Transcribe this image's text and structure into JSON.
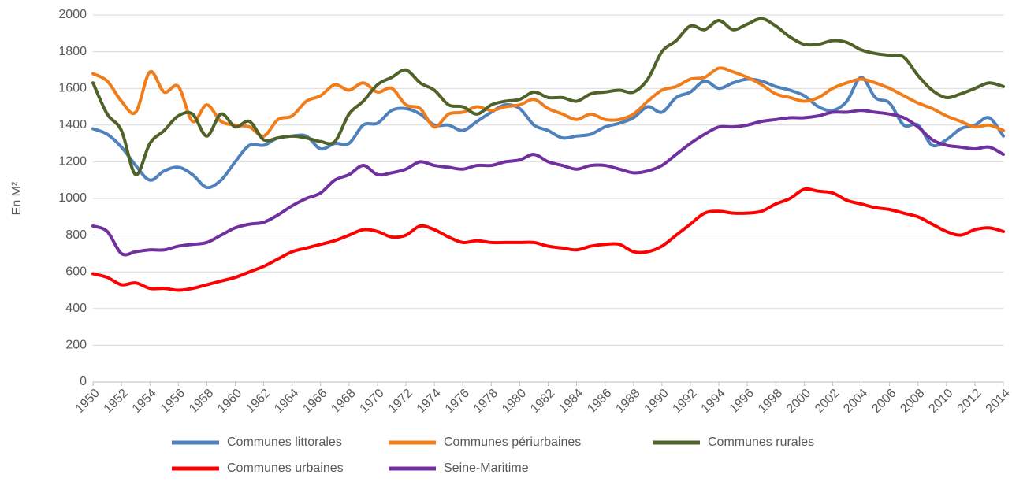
{
  "chart_data": {
    "type": "line",
    "y_label": "En M²",
    "x": [
      1950,
      1951,
      1952,
      1953,
      1954,
      1955,
      1956,
      1957,
      1958,
      1959,
      1960,
      1961,
      1962,
      1963,
      1964,
      1965,
      1966,
      1967,
      1968,
      1969,
      1970,
      1971,
      1972,
      1973,
      1974,
      1975,
      1976,
      1977,
      1978,
      1979,
      1980,
      1981,
      1982,
      1983,
      1984,
      1985,
      1986,
      1987,
      1988,
      1989,
      1990,
      1991,
      1992,
      1993,
      1994,
      1995,
      1996,
      1997,
      1998,
      1999,
      2000,
      2001,
      2002,
      2003,
      2004,
      2005,
      2006,
      2007,
      2008,
      2009,
      2010,
      2011,
      2012,
      2013,
      2014
    ],
    "xlim": [
      1950,
      2014
    ],
    "xticks": [
      1950,
      1952,
      1954,
      1956,
      1958,
      1960,
      1962,
      1964,
      1966,
      1968,
      1970,
      1972,
      1974,
      1976,
      1978,
      1980,
      1982,
      1984,
      1986,
      1988,
      1990,
      1992,
      1994,
      1996,
      1998,
      2000,
      2002,
      2004,
      2006,
      2008,
      2010,
      2012,
      2014
    ],
    "ylim": [
      0,
      2000
    ],
    "yticks": [
      0,
      200,
      400,
      600,
      800,
      1000,
      1200,
      1400,
      1600,
      1800,
      2000
    ],
    "grid": true,
    "legend": "bottom",
    "series": [
      {
        "name": "Communes littorales",
        "color": "#4f81bd",
        "values": [
          1380,
          1350,
          1280,
          1180,
          1100,
          1150,
          1170,
          1130,
          1060,
          1100,
          1200,
          1290,
          1290,
          1330,
          1340,
          1340,
          1270,
          1300,
          1300,
          1400,
          1410,
          1480,
          1490,
          1460,
          1400,
          1400,
          1370,
          1420,
          1470,
          1510,
          1490,
          1400,
          1370,
          1330,
          1340,
          1350,
          1390,
          1410,
          1440,
          1500,
          1470,
          1550,
          1580,
          1640,
          1600,
          1630,
          1650,
          1640,
          1610,
          1590,
          1560,
          1500,
          1480,
          1530,
          1660,
          1550,
          1520,
          1400,
          1400,
          1290,
          1320,
          1380,
          1400,
          1440,
          1340
        ]
      },
      {
        "name": "Communes périurbaines",
        "color": "#f07d1a",
        "values": [
          1680,
          1640,
          1530,
          1470,
          1690,
          1580,
          1610,
          1420,
          1510,
          1420,
          1400,
          1390,
          1340,
          1430,
          1450,
          1530,
          1560,
          1620,
          1590,
          1630,
          1580,
          1600,
          1510,
          1490,
          1390,
          1460,
          1470,
          1500,
          1480,
          1500,
          1510,
          1540,
          1490,
          1460,
          1430,
          1460,
          1430,
          1430,
          1460,
          1530,
          1590,
          1610,
          1650,
          1660,
          1710,
          1690,
          1660,
          1620,
          1570,
          1550,
          1530,
          1550,
          1600,
          1630,
          1650,
          1630,
          1600,
          1560,
          1520,
          1490,
          1450,
          1420,
          1390,
          1400,
          1370
        ]
      },
      {
        "name": "Communes rurales",
        "color": "#4f6228",
        "values": [
          1630,
          1460,
          1370,
          1130,
          1300,
          1370,
          1450,
          1460,
          1340,
          1460,
          1390,
          1420,
          1320,
          1330,
          1340,
          1330,
          1310,
          1310,
          1460,
          1530,
          1620,
          1660,
          1700,
          1630,
          1590,
          1510,
          1500,
          1460,
          1510,
          1530,
          1540,
          1580,
          1550,
          1550,
          1530,
          1570,
          1580,
          1590,
          1580,
          1650,
          1800,
          1860,
          1940,
          1920,
          1970,
          1920,
          1950,
          1980,
          1940,
          1880,
          1840,
          1840,
          1860,
          1850,
          1810,
          1790,
          1780,
          1770,
          1670,
          1590,
          1550,
          1570,
          1600,
          1630,
          1610
        ]
      },
      {
        "name": "Communes urbaines",
        "color": "#ff0000",
        "values": [
          590,
          570,
          530,
          540,
          510,
          510,
          500,
          510,
          530,
          550,
          570,
          600,
          630,
          670,
          710,
          730,
          750,
          770,
          800,
          830,
          820,
          790,
          800,
          850,
          830,
          790,
          760,
          770,
          760,
          760,
          760,
          760,
          740,
          730,
          720,
          740,
          750,
          750,
          710,
          710,
          740,
          800,
          860,
          920,
          930,
          920,
          920,
          930,
          970,
          1000,
          1050,
          1040,
          1030,
          990,
          970,
          950,
          940,
          920,
          900,
          860,
          820,
          800,
          830,
          840,
          820
        ]
      },
      {
        "name": "Seine-Maritime",
        "color": "#7030a0",
        "values": [
          850,
          820,
          700,
          710,
          720,
          720,
          740,
          750,
          760,
          800,
          840,
          860,
          870,
          910,
          960,
          1000,
          1030,
          1100,
          1130,
          1180,
          1130,
          1140,
          1160,
          1200,
          1180,
          1170,
          1160,
          1180,
          1180,
          1200,
          1210,
          1240,
          1200,
          1180,
          1160,
          1180,
          1180,
          1160,
          1140,
          1150,
          1180,
          1240,
          1300,
          1350,
          1390,
          1390,
          1400,
          1420,
          1430,
          1440,
          1440,
          1450,
          1470,
          1470,
          1480,
          1470,
          1460,
          1440,
          1390,
          1320,
          1290,
          1280,
          1270,
          1280,
          1240
        ]
      }
    ]
  }
}
